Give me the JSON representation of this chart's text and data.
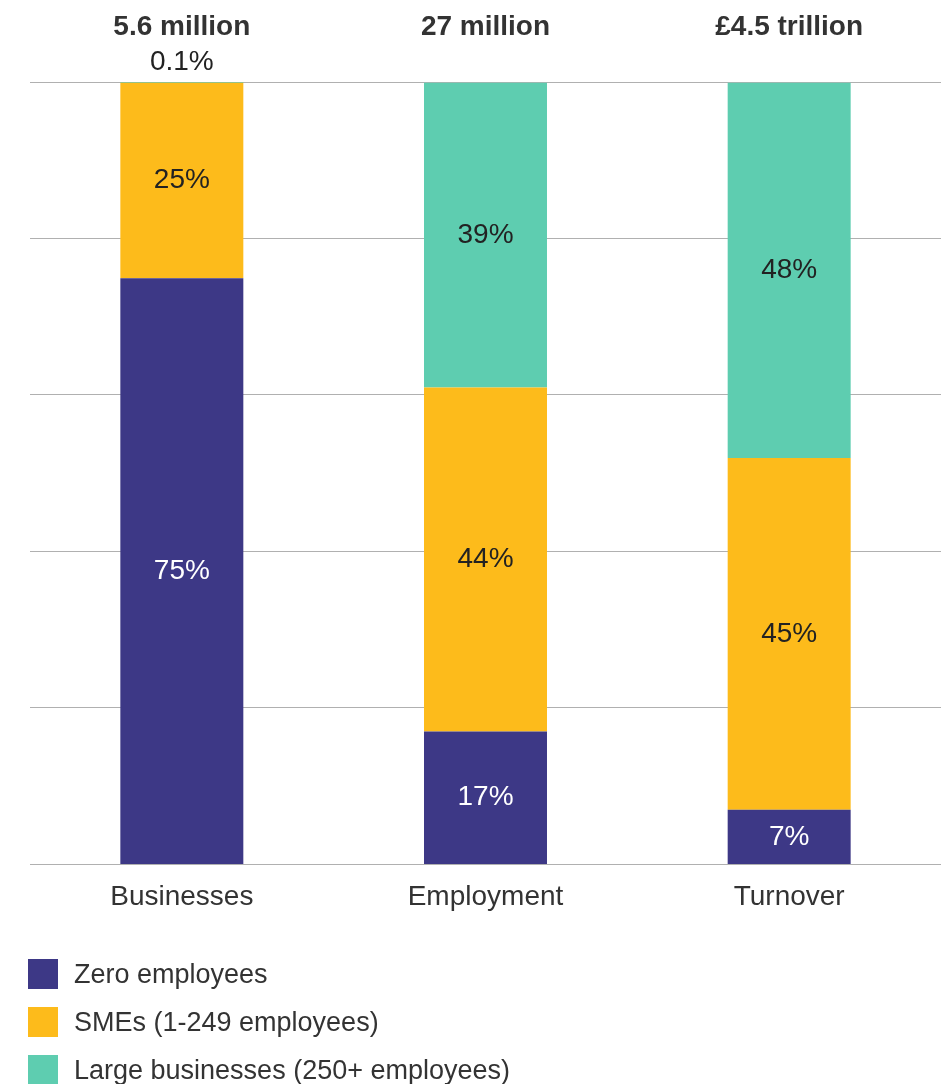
{
  "chart_data": {
    "type": "bar",
    "stacked": true,
    "categories": [
      "Businesses",
      "Employment",
      "Turnover"
    ],
    "series": [
      {
        "name": "Zero employees",
        "color": "#3d3886",
        "values": [
          75,
          17,
          7
        ],
        "value_labels": [
          "75%",
          "17%",
          "7%"
        ]
      },
      {
        "name": "SMEs (1-249 employees)",
        "color": "#fdbb1b",
        "values": [
          25,
          44,
          45
        ],
        "value_labels": [
          "25%",
          "44%",
          "45%"
        ]
      },
      {
        "name": "Large businesses (250+ employees)",
        "color": "#5ecdb0",
        "values": [
          0.1,
          39,
          48
        ],
        "value_labels": [
          "0.1%",
          "39%",
          "48%"
        ]
      }
    ],
    "grid": "y",
    "tick_labels": "x",
    "annotations": [
      "5.6 million",
      "27 million",
      "£4.5 trillion"
    ],
    "legend": "bottom"
  }
}
